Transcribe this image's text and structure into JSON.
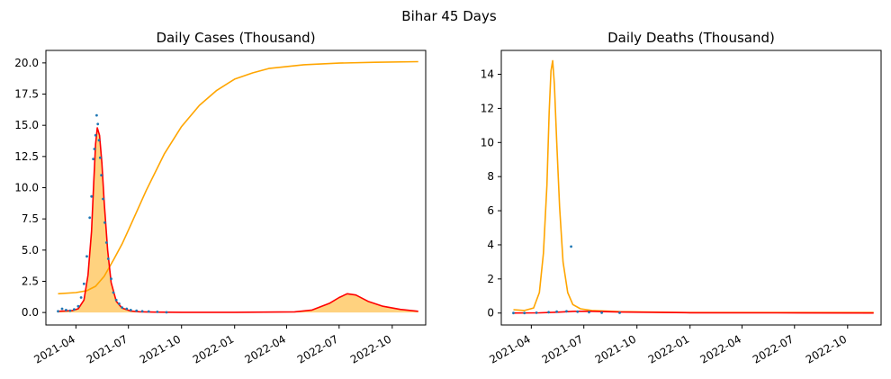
{
  "figure": {
    "suptitle": "Bihar 45 Days"
  },
  "colors": {
    "orange": "#FFA500",
    "red": "#FF0000",
    "blue": "#1f77b4",
    "fill": "#FFD27F"
  },
  "chart_data": [
    {
      "type": "line",
      "title": "Daily Cases (Thousand)",
      "xlabel": "",
      "ylabel": "",
      "xlim": [
        "2021-02-08",
        "2022-11-28"
      ],
      "ylim": [
        -1.0,
        21.0
      ],
      "x_ticks": [
        "2021-04",
        "2021-07",
        "2021-10",
        "2022-01",
        "2022-04",
        "2022-07",
        "2022-10"
      ],
      "y_ticks": [
        "0.0",
        "2.5",
        "5.0",
        "7.5",
        "10.0",
        "12.5",
        "15.0",
        "17.5",
        "20.0"
      ],
      "grid": false,
      "series": [
        {
          "role": "cumulative-curve",
          "style": "orange-line",
          "x": [
            "2021-03-01",
            "2021-04-01",
            "2021-04-20",
            "2021-05-05",
            "2021-05-20",
            "2021-06-05",
            "2021-06-20",
            "2021-07-01",
            "2021-08-01",
            "2021-09-01",
            "2021-10-01",
            "2021-11-01",
            "2021-12-01",
            "2022-01-01",
            "2022-02-01",
            "2022-03-01",
            "2022-05-01",
            "2022-07-01",
            "2022-09-01",
            "2022-11-15"
          ],
          "y": [
            1.5,
            1.6,
            1.75,
            2.1,
            2.9,
            4.2,
            5.5,
            6.6,
            9.8,
            12.7,
            14.9,
            16.6,
            17.8,
            18.7,
            19.2,
            19.55,
            19.85,
            19.98,
            20.05,
            20.1
          ]
        },
        {
          "role": "fitted-daily",
          "style": "red-line-with-fill",
          "x": [
            "2021-03-01",
            "2021-03-25",
            "2021-04-05",
            "2021-04-15",
            "2021-04-22",
            "2021-04-28",
            "2021-05-02",
            "2021-05-05",
            "2021-05-08",
            "2021-05-12",
            "2021-05-16",
            "2021-05-20",
            "2021-05-26",
            "2021-06-01",
            "2021-06-10",
            "2021-06-20",
            "2021-07-05",
            "2021-07-20",
            "2021-08-15",
            "2021-10-01",
            "2022-01-01",
            "2022-04-15",
            "2022-05-15",
            "2022-06-15",
            "2022-07-01",
            "2022-07-15",
            "2022-07-30",
            "2022-08-20",
            "2022-09-15",
            "2022-10-15",
            "2022-11-15"
          ],
          "y": [
            0.1,
            0.15,
            0.3,
            1.0,
            3.0,
            6.5,
            10.5,
            13.5,
            14.8,
            14.2,
            12.0,
            8.8,
            5.0,
            2.4,
            0.9,
            0.35,
            0.12,
            0.06,
            0.03,
            0.02,
            0.02,
            0.05,
            0.2,
            0.75,
            1.2,
            1.5,
            1.4,
            0.9,
            0.5,
            0.25,
            0.1
          ]
        },
        {
          "role": "observed-daily",
          "style": "blue-points",
          "x": [
            "2021-03-01",
            "2021-03-08",
            "2021-03-15",
            "2021-03-22",
            "2021-03-29",
            "2021-04-05",
            "2021-04-10",
            "2021-04-15",
            "2021-04-20",
            "2021-04-25",
            "2021-04-28",
            "2021-05-01",
            "2021-05-03",
            "2021-05-05",
            "2021-05-07",
            "2021-05-09",
            "2021-05-11",
            "2021-05-13",
            "2021-05-15",
            "2021-05-18",
            "2021-05-21",
            "2021-05-24",
            "2021-05-27",
            "2021-06-01",
            "2021-06-05",
            "2021-06-10",
            "2021-06-15",
            "2021-06-20",
            "2021-06-28",
            "2021-07-05",
            "2021-07-15",
            "2021-07-25",
            "2021-08-05",
            "2021-08-20",
            "2021-09-05"
          ],
          "y": [
            0.1,
            0.3,
            0.2,
            0.15,
            0.25,
            0.5,
            1.2,
            2.3,
            4.5,
            7.6,
            9.3,
            12.3,
            13.1,
            14.2,
            15.8,
            15.1,
            13.8,
            12.4,
            11.0,
            9.1,
            7.2,
            5.6,
            4.3,
            2.7,
            1.6,
            1.0,
            0.7,
            0.4,
            0.3,
            0.2,
            0.15,
            0.1,
            0.08,
            0.05,
            0.02
          ]
        }
      ]
    },
    {
      "type": "line",
      "title": "Daily Deaths (Thousand)",
      "xlabel": "",
      "ylabel": "",
      "xlim": [
        "2021-02-08",
        "2022-11-28"
      ],
      "ylim": [
        -0.7,
        15.4
      ],
      "x_ticks": [
        "2021-04",
        "2021-07",
        "2021-10",
        "2022-01",
        "2022-04",
        "2022-07",
        "2022-10"
      ],
      "y_ticks": [
        "0",
        "2",
        "4",
        "6",
        "8",
        "10",
        "12",
        "14"
      ],
      "grid": false,
      "series": [
        {
          "role": "peak-curve",
          "style": "orange-line",
          "x": [
            "2021-03-01",
            "2021-03-20",
            "2021-04-05",
            "2021-04-15",
            "2021-04-22",
            "2021-04-28",
            "2021-05-02",
            "2021-05-05",
            "2021-05-08",
            "2021-05-11",
            "2021-05-15",
            "2021-05-20",
            "2021-05-26",
            "2021-06-03",
            "2021-06-12",
            "2021-06-25",
            "2021-07-15",
            "2021-09-01",
            "2022-01-01",
            "2022-06-01",
            "2022-11-15"
          ],
          "y": [
            0.2,
            0.15,
            0.3,
            1.2,
            3.5,
            7.5,
            11.8,
            14.2,
            14.8,
            13.4,
            10.0,
            6.2,
            3.0,
            1.2,
            0.5,
            0.25,
            0.15,
            0.08,
            0.03,
            0.03,
            0.03
          ]
        },
        {
          "role": "fitted-deaths",
          "style": "red-line",
          "x": [
            "2021-03-01",
            "2021-04-15",
            "2021-05-15",
            "2021-06-15",
            "2021-07-15",
            "2021-09-01",
            "2022-01-01",
            "2022-06-01",
            "2022-11-15"
          ],
          "y": [
            0.0,
            0.01,
            0.05,
            0.1,
            0.1,
            0.06,
            0.02,
            0.01,
            0.0
          ]
        },
        {
          "role": "observed-deaths",
          "style": "blue-points",
          "x": [
            "2021-03-01",
            "2021-03-20",
            "2021-04-10",
            "2021-05-01",
            "2021-05-15",
            "2021-06-01",
            "2021-06-09",
            "2021-06-20",
            "2021-07-10",
            "2021-08-01",
            "2021-09-01"
          ],
          "y": [
            0.0,
            0.0,
            0.02,
            0.05,
            0.08,
            0.1,
            3.9,
            0.08,
            0.05,
            0.02,
            0.01
          ]
        }
      ]
    }
  ]
}
